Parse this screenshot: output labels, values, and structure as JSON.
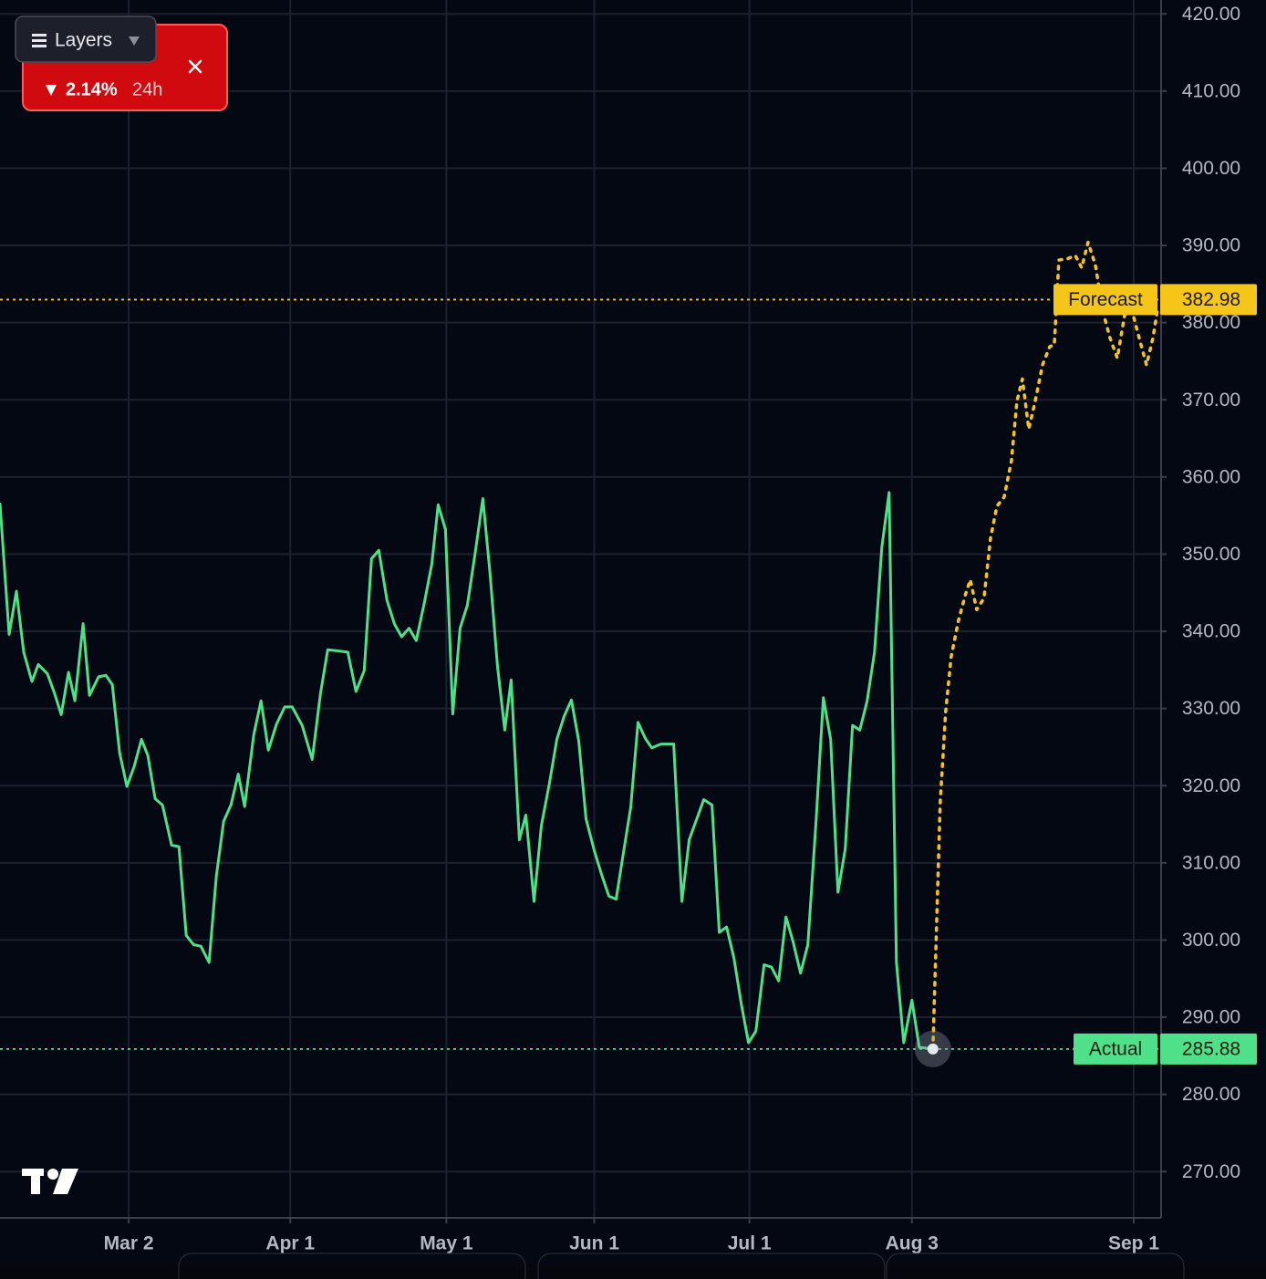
{
  "layers_button": {
    "label": "Layers"
  },
  "price_alert": {
    "change": "2.14%",
    "period": "24h"
  },
  "chart_data": {
    "type": "line",
    "xlim": [
      0,
      1272
    ],
    "ylim": [
      264,
      421.8
    ],
    "grid": true,
    "xticks": [
      {
        "value": 141,
        "label": "Mar 2"
      },
      {
        "value": 318,
        "label": "Apr 1"
      },
      {
        "value": 489,
        "label": "May 1"
      },
      {
        "value": 651,
        "label": "Jun 1"
      },
      {
        "value": 821,
        "label": "Jul 1"
      },
      {
        "value": 999,
        "label": "Aug 3"
      },
      {
        "value": 1242,
        "label": "Sep 1"
      }
    ],
    "yticks": [
      {
        "value": 270,
        "label": "270.00"
      },
      {
        "value": 280,
        "label": "280.00"
      },
      {
        "value": 290,
        "label": "290.00"
      },
      {
        "value": 300,
        "label": "300.00"
      },
      {
        "value": 310,
        "label": "310.00"
      },
      {
        "value": 320,
        "label": "320.00"
      },
      {
        "value": 330,
        "label": "330.00"
      },
      {
        "value": 340,
        "label": "340.00"
      },
      {
        "value": 350,
        "label": "350.00"
      },
      {
        "value": 360,
        "label": "360.00"
      },
      {
        "value": 370,
        "label": "370.00"
      },
      {
        "value": 380,
        "label": "380.00"
      },
      {
        "value": 390,
        "label": "390.00"
      },
      {
        "value": 400,
        "label": "400.00"
      },
      {
        "value": 410,
        "label": "410.00"
      },
      {
        "value": 420,
        "label": "420.00"
      }
    ],
    "series": [
      {
        "name": "Actual",
        "color": "#4fe08a",
        "price_line": 285.88,
        "x": [
          0,
          10,
          18,
          26,
          35,
          42,
          52,
          60,
          67,
          75,
          82,
          91,
          98,
          108,
          116,
          123,
          131,
          139,
          147,
          155,
          162,
          170,
          178,
          188,
          196,
          204,
          212,
          220,
          229,
          237,
          245,
          253,
          261,
          268,
          278,
          286,
          294,
          303,
          312,
          320,
          331,
          342,
          351,
          359,
          368,
          381,
          390,
          399,
          407,
          415,
          424,
          432,
          440,
          448,
          456,
          465,
          473,
          480,
          488,
          496,
          504,
          512,
          520,
          529,
          537,
          545,
          553,
          560,
          569,
          576,
          585,
          593,
          602,
          610,
          618,
          626,
          634,
          642,
          651,
          659,
          667,
          675,
          683,
          691,
          699,
          707,
          714,
          724,
          738,
          747,
          755,
          763,
          771,
          780,
          788,
          796,
          804,
          812,
          820,
          828,
          837,
          845,
          853,
          861,
          869,
          877,
          885,
          894,
          902,
          910,
          918,
          926,
          934,
          942,
          950,
          958,
          966,
          974,
          982,
          990,
          999,
          1007,
          1022
        ],
        "values": [
          356.5,
          339.6,
          345.2,
          337.3,
          333.5,
          335.7,
          334.5,
          331.9,
          329.2,
          334.7,
          331,
          341,
          331.7,
          334.1,
          334.3,
          333.1,
          324.3,
          319.9,
          322.5,
          326,
          323.9,
          318.3,
          317.5,
          312.3,
          312.1,
          300.6,
          299.4,
          299.2,
          297.1,
          308.3,
          315.4,
          317.5,
          321.5,
          317.3,
          326.6,
          331,
          324.6,
          328,
          330.2,
          330.2,
          327.8,
          323.4,
          331.9,
          337.6,
          337.5,
          337.3,
          332.2,
          334.9,
          349.4,
          350.5,
          344,
          341,
          339.3,
          340.4,
          338.8,
          343.8,
          348.7,
          356.4,
          353.2,
          329.3,
          340.4,
          343.4,
          349.7,
          357.2,
          347.3,
          335.5,
          327.2,
          333.7,
          313,
          316.2,
          305,
          314.8,
          320.4,
          326,
          329,
          331.1,
          325.8,
          315.7,
          311.6,
          308.5,
          305.7,
          305.3,
          311.3,
          317.2,
          328.2,
          326.1,
          324.9,
          325.4,
          325.4,
          305,
          313,
          315.6,
          318.2,
          317.5,
          301,
          301.7,
          297.7,
          291.8,
          286.7,
          288.2,
          296.8,
          296.5,
          294.7,
          303,
          299.7,
          295.7,
          299.4,
          315.4,
          331.4,
          326,
          306.2,
          311.8,
          327.8,
          327.2,
          331,
          337.3,
          350.9,
          358,
          297.1,
          286.7,
          292.2,
          286.1,
          285.88
        ]
      },
      {
        "name": "Forecast",
        "color": "#f5c518",
        "price_line": 382.98,
        "x": [
          1022,
          1030,
          1036,
          1042,
          1050,
          1058,
          1063,
          1070,
          1078,
          1085,
          1092,
          1100,
          1108,
          1114,
          1120,
          1127,
          1134,
          1142,
          1150,
          1155,
          1160,
          1170,
          1178,
          1185,
          1192,
          1200,
          1208,
          1216,
          1224,
          1232,
          1240,
          1248,
          1256,
          1263,
          1268
        ],
        "values": [
          285.88,
          317.8,
          329.6,
          336.7,
          341.4,
          344.9,
          346.7,
          342.8,
          344.3,
          352,
          356.2,
          357.4,
          362.1,
          369.8,
          372.7,
          366.2,
          369.8,
          374.5,
          376.9,
          377.1,
          388.1,
          388.3,
          388.7,
          387.1,
          390.4,
          387.5,
          381.6,
          378,
          375.4,
          381,
          381.6,
          378,
          374.5,
          378,
          381.6
        ]
      }
    ]
  }
}
